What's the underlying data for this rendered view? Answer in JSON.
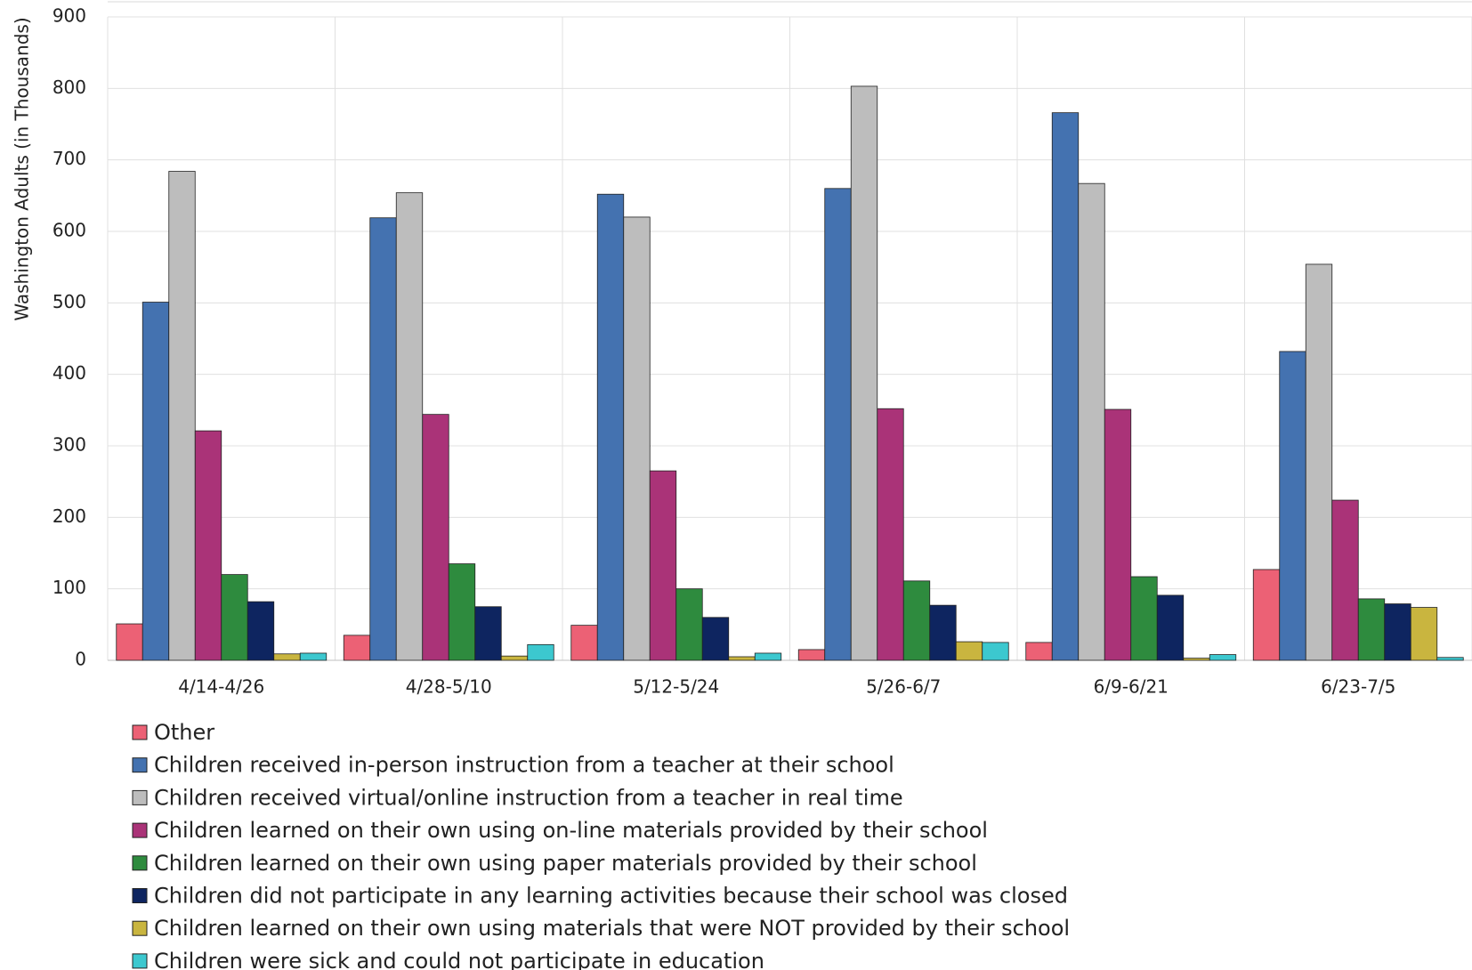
{
  "chart_data": {
    "type": "bar",
    "y_label": "Washington Adults (in Thousands)",
    "categories": [
      "4/14-4/26",
      "4/28-5/10",
      "5/12-5/24",
      "5/26-6/7",
      "6/9-6/21",
      "6/23-7/5"
    ],
    "series": [
      {
        "name": "Other",
        "color": "#ec6175",
        "values": [
          51,
          35,
          49,
          15,
          25,
          127
        ]
      },
      {
        "name": "Children received in-person instruction from a teacher at their school",
        "color": "#4472b0",
        "values": [
          501,
          619,
          652,
          660,
          766,
          432
        ]
      },
      {
        "name": "Children received virtual/online instruction from a teacher in real time",
        "color": "#bdbdbd",
        "values": [
          684,
          654,
          620,
          803,
          667,
          554
        ]
      },
      {
        "name": "Children learned on their own using on-line materials provided by their school",
        "color": "#aa3378",
        "values": [
          321,
          344,
          265,
          352,
          351,
          224
        ]
      },
      {
        "name": "Children learned on their own using paper materials provided by their school",
        "color": "#2e8b3e",
        "values": [
          120,
          135,
          100,
          111,
          117,
          86
        ]
      },
      {
        "name": "Children did not participate in any learning activities because their school was closed",
        "color": "#0e2560",
        "values": [
          82,
          75,
          60,
          77,
          91,
          79
        ]
      },
      {
        "name": "Children learned on their own using materials that were NOT provided by their school",
        "color": "#c9b53f",
        "values": [
          9,
          6,
          5,
          26,
          3,
          74
        ]
      },
      {
        "name": "Children were sick and could not participate in education",
        "color": "#3cc8cf",
        "values": [
          10,
          22,
          10,
          25,
          8,
          4
        ]
      }
    ],
    "ylim": [
      0,
      900
    ],
    "yticks": [
      0,
      100,
      200,
      300,
      400,
      500,
      600,
      700,
      800,
      900
    ],
    "grid": true
  }
}
